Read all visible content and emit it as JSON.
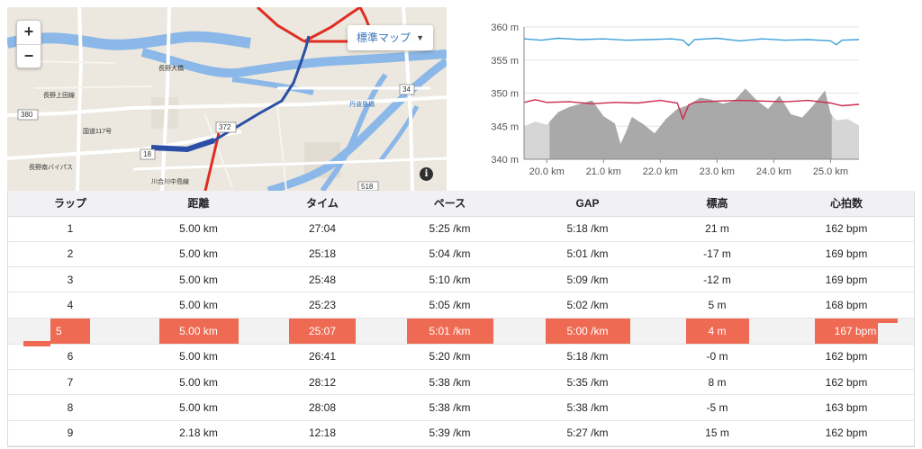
{
  "map": {
    "zoom_in": "+",
    "zoom_out": "−",
    "map_type_label": "標準マップ",
    "info_label": "i",
    "road_labels": [
      "380",
      "18",
      "34",
      "372",
      "518",
      "長野上田線",
      "長野南バイパス",
      "国道117号",
      "川合川中島線",
      "長野大橋",
      "丹波島橋"
    ],
    "colors": {
      "route": "#2b4ea6",
      "roads": "#e02d22",
      "water": "#8bb8e8",
      "land": "#ece8df"
    }
  },
  "chart_data": {
    "type": "area",
    "xlabel": "",
    "ylabel": "",
    "x_unit": "km",
    "y_unit": "m",
    "xlim": [
      19.6,
      25.5
    ],
    "ylim": [
      340,
      360
    ],
    "x_ticks": [
      "20.0 km",
      "21.0 km",
      "22.0 km",
      "23.0 km",
      "24.0 km",
      "25.0 km"
    ],
    "y_ticks": [
      "360 m",
      "355 m",
      "350 m",
      "345 m",
      "340 m"
    ],
    "selection_range_km": [
      20.05,
      25.02
    ],
    "colors": {
      "elevation": "#a9a9a9",
      "elevation_outside": "#d6d6d6",
      "pace": "#3ea0d9",
      "heart_rate": "#cc2a4e"
    },
    "series": [
      {
        "key": "elevation",
        "x": [
          19.6,
          19.8,
          20.0,
          20.2,
          20.4,
          20.6,
          20.8,
          21.0,
          21.2,
          21.3,
          21.4,
          21.5,
          21.7,
          21.9,
          22.1,
          22.3,
          22.5,
          22.7,
          22.9,
          23.1,
          23.3,
          23.5,
          23.7,
          23.9,
          24.1,
          24.3,
          24.5,
          24.7,
          24.9,
          25.0,
          25.1,
          25.3,
          25.5
        ],
        "values": [
          345.0,
          345.7,
          345.2,
          347.1,
          347.9,
          348.4,
          348.9,
          346.5,
          345.4,
          342.3,
          344.2,
          346.4,
          345.3,
          343.9,
          346.1,
          347.6,
          348.2,
          349.3,
          349.0,
          348.4,
          348.8,
          350.7,
          348.9,
          347.6,
          349.6,
          346.8,
          346.3,
          348.2,
          350.4,
          346.9,
          345.9,
          346.1,
          345.1
        ]
      },
      {
        "key": "pace",
        "x": [
          19.6,
          19.9,
          20.2,
          20.6,
          21.0,
          21.4,
          21.8,
          22.2,
          22.4,
          22.5,
          22.6,
          23.0,
          23.4,
          23.8,
          24.2,
          24.6,
          25.0,
          25.1,
          25.2,
          25.5
        ],
        "values": [
          358.2,
          358.0,
          358.3,
          358.1,
          358.2,
          358.0,
          358.1,
          358.2,
          358.0,
          357.2,
          358.1,
          358.3,
          357.9,
          358.2,
          358.0,
          358.1,
          357.9,
          357.3,
          358.0,
          358.1
        ]
      },
      {
        "key": "heart_rate",
        "x": [
          19.6,
          19.8,
          20.0,
          20.4,
          20.8,
          21.2,
          21.6,
          22.0,
          22.3,
          22.4,
          22.5,
          22.6,
          23.0,
          23.4,
          23.8,
          24.2,
          24.6,
          25.0,
          25.2,
          25.5
        ],
        "values": [
          348.6,
          349.0,
          348.6,
          348.7,
          348.4,
          348.6,
          348.5,
          348.9,
          348.5,
          346.1,
          348.2,
          348.6,
          348.8,
          348.9,
          348.8,
          348.7,
          348.9,
          348.5,
          348.1,
          348.3
        ]
      }
    ]
  },
  "laps": {
    "headers": [
      "ラップ",
      "距離",
      "タイム",
      "ペース",
      "GAP",
      "標高",
      "心拍数"
    ],
    "selected_index": 4,
    "rows": [
      {
        "lap": "1",
        "distance": "5.00 km",
        "time": "27:04",
        "pace": "5:25 /km",
        "gap": "5:18 /km",
        "elevation": "21 m",
        "heart_rate": "162 bpm"
      },
      {
        "lap": "2",
        "distance": "5.00 km",
        "time": "25:18",
        "pace": "5:04 /km",
        "gap": "5:01 /km",
        "elevation": "-17 m",
        "heart_rate": "169 bpm"
      },
      {
        "lap": "3",
        "distance": "5.00 km",
        "time": "25:48",
        "pace": "5:10 /km",
        "gap": "5:09 /km",
        "elevation": "-12 m",
        "heart_rate": "169 bpm"
      },
      {
        "lap": "4",
        "distance": "5.00 km",
        "time": "25:23",
        "pace": "5:05 /km",
        "gap": "5:02 /km",
        "elevation": "5 m",
        "heart_rate": "168 bpm"
      },
      {
        "lap": "5",
        "distance": "5.00 km",
        "time": "25:07",
        "pace": "5:01 /km",
        "gap": "5:00 /km",
        "elevation": "4 m",
        "heart_rate": "167 bpm"
      },
      {
        "lap": "6",
        "distance": "5.00 km",
        "time": "26:41",
        "pace": "5:20 /km",
        "gap": "5:18 /km",
        "elevation": "-0 m",
        "heart_rate": "162 bpm"
      },
      {
        "lap": "7",
        "distance": "5.00 km",
        "time": "28:12",
        "pace": "5:38 /km",
        "gap": "5:35 /km",
        "elevation": "8 m",
        "heart_rate": "162 bpm"
      },
      {
        "lap": "8",
        "distance": "5.00 km",
        "time": "28:08",
        "pace": "5:38 /km",
        "gap": "5:38 /km",
        "elevation": "-5 m",
        "heart_rate": "163 bpm"
      },
      {
        "lap": "9",
        "distance": "2.18 km",
        "time": "12:18",
        "pace": "5:39 /km",
        "gap": "5:27 /km",
        "elevation": "15 m",
        "heart_rate": "162 bpm"
      }
    ]
  }
}
